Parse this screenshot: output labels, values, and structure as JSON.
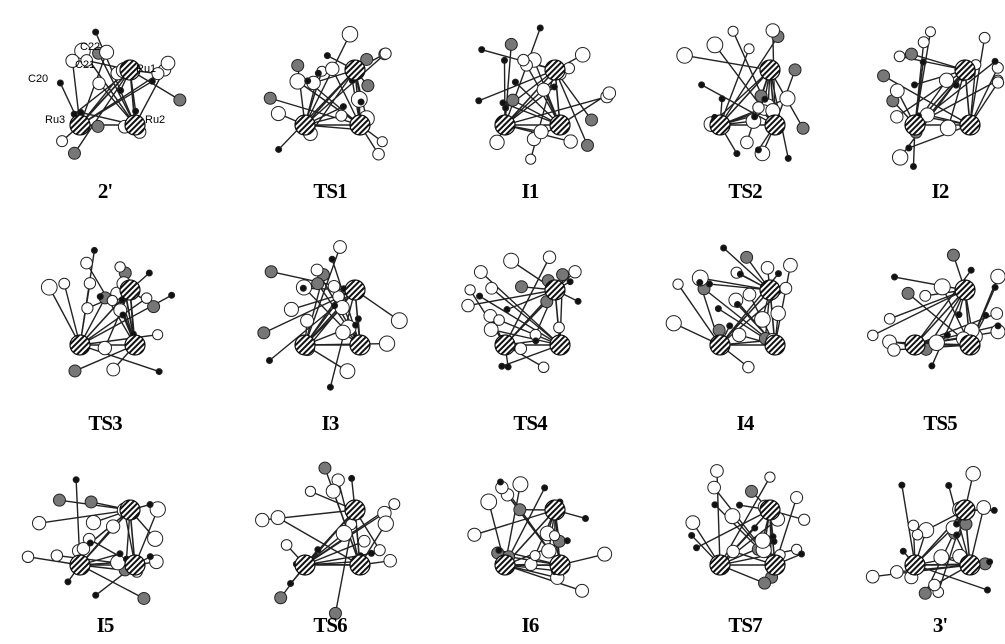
{
  "structures": [
    {
      "label": "2'"
    },
    {
      "label": "TS1"
    },
    {
      "label": "I1"
    },
    {
      "label": "TS2"
    },
    {
      "label": "I2"
    },
    {
      "label": "TS3"
    },
    {
      "label": "I3"
    },
    {
      "label": "TS4"
    },
    {
      "label": "I4"
    },
    {
      "label": "TS5"
    },
    {
      "label": "I5"
    },
    {
      "label": "TS6"
    },
    {
      "label": "I6"
    },
    {
      "label": "TS7"
    },
    {
      "label": "3'"
    }
  ],
  "atom_labels": [
    "C22",
    "C21",
    "C20",
    "Ru1",
    "Ru3",
    "Ru2"
  ]
}
